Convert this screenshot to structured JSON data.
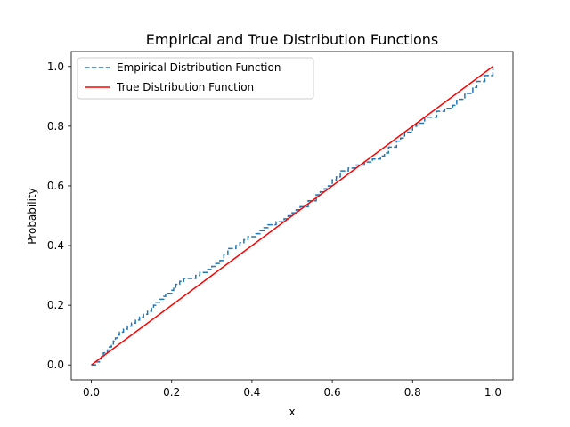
{
  "chart_data": {
    "type": "line",
    "title": "Empirical and True Distribution Functions",
    "xlabel": "x",
    "ylabel": "Probability",
    "xlim": [
      -0.05,
      1.05
    ],
    "ylim": [
      -0.05,
      1.05
    ],
    "x_ticks": [
      0.0,
      0.2,
      0.4,
      0.6,
      0.8,
      1.0
    ],
    "y_ticks": [
      0.0,
      0.2,
      0.4,
      0.6,
      0.8,
      1.0
    ],
    "x_tick_labels": [
      "0.0",
      "0.2",
      "0.4",
      "0.6",
      "0.8",
      "1.0"
    ],
    "y_tick_labels": [
      "0.0",
      "0.2",
      "0.4",
      "0.6",
      "0.8",
      "1.0"
    ],
    "grid": false,
    "legend_position": "upper-left",
    "series": [
      {
        "name": "Empirical Distribution Function",
        "style": "dashed-step",
        "color": "#1f77b4",
        "x": [
          0.0,
          0.01,
          0.02,
          0.025,
          0.03,
          0.04,
          0.045,
          0.05,
          0.055,
          0.06,
          0.065,
          0.07,
          0.08,
          0.09,
          0.1,
          0.11,
          0.12,
          0.13,
          0.14,
          0.15,
          0.155,
          0.16,
          0.17,
          0.18,
          0.185,
          0.2,
          0.205,
          0.21,
          0.22,
          0.23,
          0.26,
          0.27,
          0.29,
          0.3,
          0.31,
          0.32,
          0.33,
          0.34,
          0.36,
          0.37,
          0.38,
          0.39,
          0.41,
          0.42,
          0.43,
          0.44,
          0.46,
          0.48,
          0.49,
          0.5,
          0.51,
          0.52,
          0.54,
          0.56,
          0.57,
          0.58,
          0.59,
          0.6,
          0.61,
          0.62,
          0.64,
          0.66,
          0.68,
          0.7,
          0.72,
          0.73,
          0.74,
          0.76,
          0.77,
          0.78,
          0.8,
          0.81,
          0.83,
          0.86,
          0.88,
          0.9,
          0.91,
          0.93,
          0.95,
          0.96,
          0.98,
          1.0
        ],
        "y": [
          0.0,
          0.01,
          0.02,
          0.03,
          0.04,
          0.05,
          0.06,
          0.07,
          0.08,
          0.09,
          0.1,
          0.11,
          0.12,
          0.13,
          0.14,
          0.15,
          0.16,
          0.17,
          0.18,
          0.19,
          0.2,
          0.21,
          0.22,
          0.23,
          0.24,
          0.25,
          0.26,
          0.27,
          0.28,
          0.29,
          0.3,
          0.31,
          0.32,
          0.33,
          0.34,
          0.35,
          0.37,
          0.39,
          0.4,
          0.41,
          0.42,
          0.43,
          0.44,
          0.45,
          0.46,
          0.47,
          0.48,
          0.49,
          0.5,
          0.51,
          0.52,
          0.53,
          0.55,
          0.57,
          0.58,
          0.59,
          0.6,
          0.62,
          0.63,
          0.65,
          0.66,
          0.67,
          0.68,
          0.69,
          0.7,
          0.71,
          0.73,
          0.75,
          0.76,
          0.78,
          0.8,
          0.81,
          0.83,
          0.85,
          0.86,
          0.87,
          0.89,
          0.91,
          0.93,
          0.95,
          0.97,
          1.0
        ]
      },
      {
        "name": "True Distribution Function",
        "style": "solid",
        "color": "#ff0000",
        "x": [
          0.0,
          1.0
        ],
        "y": [
          0.0,
          1.0
        ]
      }
    ]
  }
}
